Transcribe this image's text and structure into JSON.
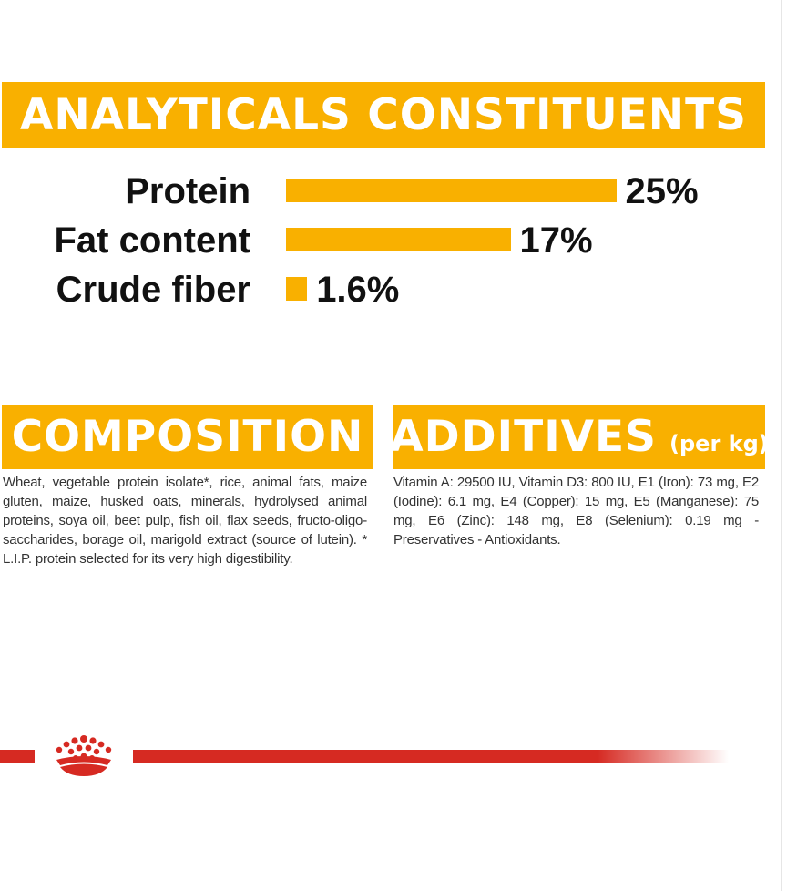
{
  "analytics": {
    "title": "ANALYTICALS CONSTITUENTS",
    "items": [
      {
        "label": "Protein",
        "value_text": "25%",
        "value": 25
      },
      {
        "label": "Fat content",
        "value_text": "17%",
        "value": 17
      },
      {
        "label": "Crude fiber",
        "value_text": "1.6%",
        "value": 1.6
      }
    ]
  },
  "composition": {
    "title": "COMPOSITION",
    "text": "Wheat, vegetable protein isolate*, rice, animal fats, maize gluten, maize, husked oats, minerals, hydrolysed animal proteins, soya oil, beet pulp, fish oil, flax seeds, fructo-oligo-saccharides, borage oil, marigold extract (source of lutein). * L.I.P. protein selected for its very high digestibility."
  },
  "additives": {
    "title": "ADDITIVES",
    "subtitle": "(per kg)",
    "text": "Vitamin A: 29500 IU, Vitamin D3: 800 IU, E1 (Iron): 73 mg, E2 (Iodine): 6.1 mg, E4 (Copper): 15 mg, E5 (Manganese): 75 mg, E6 (Zinc): 148 mg, E8 (Selenium): 0.19 mg - Preservatives - Antioxidants."
  },
  "colors": {
    "banner": "#f9b000",
    "brand_red": "#d62a22"
  },
  "footer": {
    "logo_icon": "crown-icon"
  }
}
